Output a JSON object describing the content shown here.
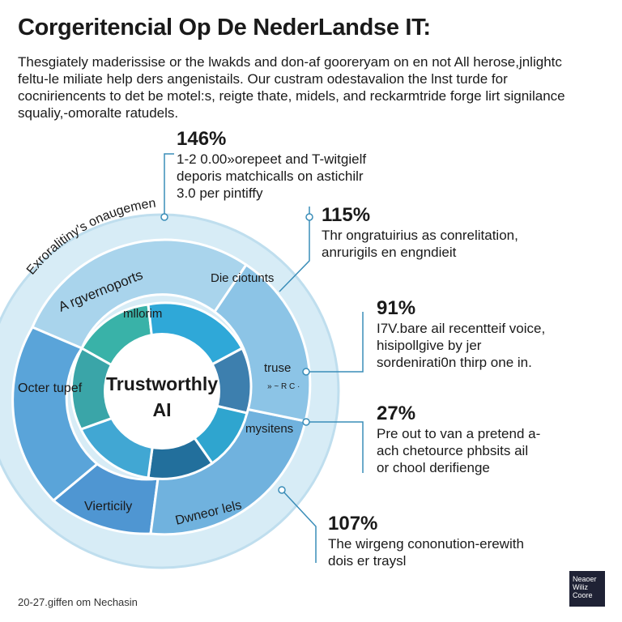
{
  "header": {
    "title": "Corgeritencial Op De NederLandse IT:",
    "intro_lines": [
      "Thesgiately maderissise or the lwakds and don-af gooreryam on en not All herose,jnlightc",
      "feltu-le miliate help ders angenistails. Our custram odestavalion the lnst turde for",
      "cocniriencents to det be motel:s, reigte thate, midels, and reckarmtride forge lirt signilance",
      "squaliy,-omoralte ratudels."
    ]
  },
  "diagram": {
    "center_label": [
      "Trustworthly",
      "AI"
    ],
    "outer_ring_label": "Exroralitiny's onaugemen",
    "middle_ring": [
      "A rgvernoports",
      "Octer tupef",
      "Vierticily",
      "Dwneor lels"
    ],
    "inner_ring": [
      "mllorim",
      "Die ciotunts",
      "truse",
      "mysitens"
    ],
    "inner_ring_small": "» ~ R C ·",
    "colors": {
      "outer_ring": "#d7ecf6",
      "outer_ring_edge": "#bfdeee",
      "middle_ring": [
        "#a9d4ec",
        "#5aa4d9",
        "#4f96d2",
        "#70b2de"
      ],
      "inner_ring": [
        "#39b2a8",
        "#2fa8d8",
        "#3d7fae",
        "#2fa5cf",
        "#226f9c",
        "#41a7d3",
        "#3aa5c8"
      ],
      "connector": "#3a8db8",
      "accent": "#1f2235"
    }
  },
  "stats": [
    {
      "value": "146%",
      "text": [
        "1-2 0.00»orepeet and T-witgielf",
        "deporis matchicalls on astichilr",
        "3.0 per pintiffy"
      ]
    },
    {
      "value": "115%",
      "text": [
        "Thr ongratuirius as conrelitation,",
        "anrurigils en engndieit"
      ]
    },
    {
      "value": "91%",
      "text": [
        "I7V.bare ail recentteif voice,",
        "hisipollgive by jer",
        "sordenirati0n thirp one in."
      ]
    },
    {
      "value": "27%",
      "text": [
        "Pre out to van a pretend a-",
        "ach chetource phbsits ail",
        "or chool derifienge"
      ]
    },
    {
      "value": "107%",
      "text": [
        "The wirgeng cononution-erewith",
        "dois er traysl"
      ]
    }
  ],
  "footer": {
    "caption": "20-27.giffen om Nechasin",
    "logo_lines": [
      "Neaoer",
      "Wiliz",
      "Coore"
    ]
  }
}
